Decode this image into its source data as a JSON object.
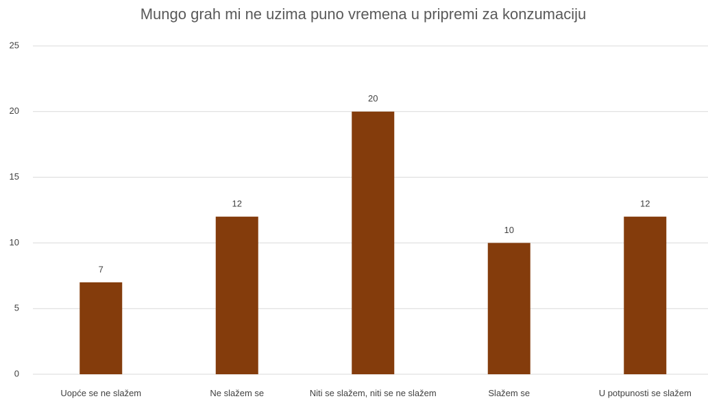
{
  "chart_data": {
    "type": "bar",
    "title": "Mungo grah mi ne uzima puno vremena u pripremi za konzumaciju",
    "categories": [
      "Uopće se ne slažem",
      "Ne slažem se",
      "Niti se slažem, niti se ne slažem",
      "Slažem se",
      "U potpunosti se slažem"
    ],
    "values": [
      7,
      12,
      20,
      10,
      12
    ],
    "color": "#843c0c",
    "ylim": [
      0,
      25
    ],
    "yticks": [
      0,
      5,
      10,
      15,
      20,
      25
    ],
    "grid": true,
    "data_labels": true
  }
}
